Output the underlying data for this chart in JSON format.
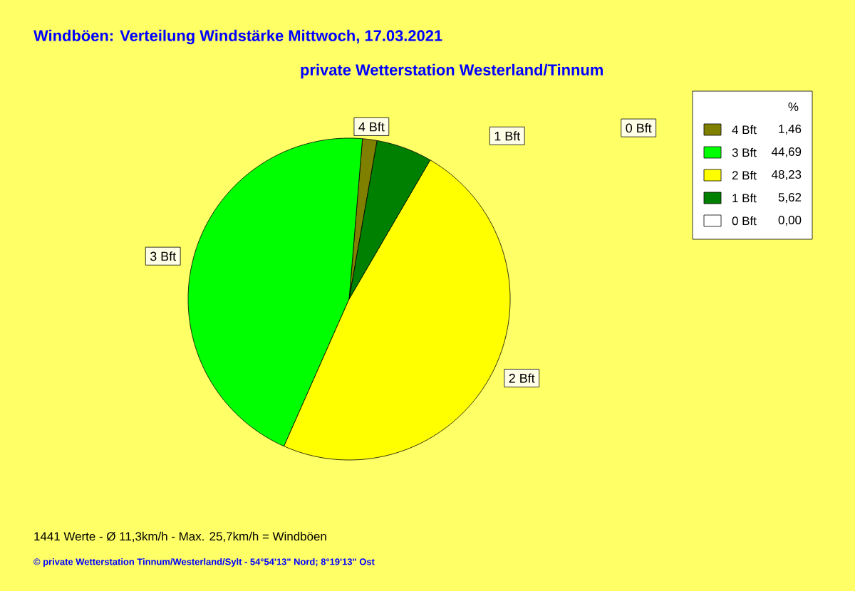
{
  "chart_data": {
    "type": "pie",
    "title": "Windböen: Verteilung Windstärke  Mittwoch, 17.03.2021",
    "subtitle": "private Wetterstation Westerland/Tinnum",
    "categories": [
      "4 Bft",
      "3 Bft",
      "2 Bft",
      "1 Bft",
      "0 Bft"
    ],
    "values": [
      1.46,
      44.69,
      48.23,
      5.62,
      0.0
    ],
    "value_labels": [
      "1,46",
      "44,69",
      "48,23",
      "5,62",
      "0,00"
    ],
    "colors": [
      "#808000",
      "#00ff00",
      "#ffff00",
      "#008000",
      "#ffffff"
    ],
    "legend": "top right",
    "legend_title": "%",
    "annotations": [
      "1441 Werte   -   Ø 11,3km/h  -  Max. 25,7km/h = Windböen",
      "© private Wetterstation Tinnum/Westerland/Sylt  -  54°54'13\" Nord; 8°19'13\" Ost"
    ]
  }
}
